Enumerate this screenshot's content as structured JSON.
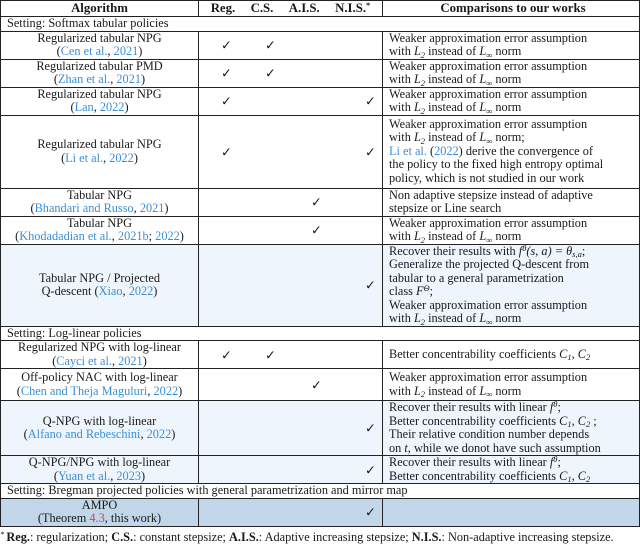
{
  "header": {
    "algorithm": "Algorithm",
    "reg": "Reg.",
    "cs": "C.S.",
    "ais": "A.I.S.",
    "nis": "N.I.S.",
    "nis_mark": "*",
    "comparisons": "Comparisons to our works"
  },
  "check_glyph": "✓",
  "colors": {
    "link": "#3b8fd6",
    "ref": "#e0403f",
    "highlight": "#eef5fc",
    "ours": "#c2d6ea"
  },
  "rows": [
    {
      "type": "setting",
      "text": "Setting: Softmax tabular policies"
    },
    {
      "type": "row",
      "h": 22,
      "alg": [
        [
          {
            "t": "Regularized tabular NPG"
          }
        ],
        [
          {
            "t": "("
          },
          {
            "t": "Cen et al.",
            "k": "link"
          },
          {
            "t": ", "
          },
          {
            "t": "2021",
            "k": "link"
          },
          {
            "t": ")"
          }
        ]
      ],
      "checks": {
        "reg": true,
        "cs": true,
        "ais": false,
        "nis": false
      },
      "cmp": [
        [
          {
            "t": "Weaker approximation error assumption"
          }
        ],
        [
          {
            "t": "with "
          },
          {
            "t": "L",
            "k": "math"
          },
          {
            "t": "2",
            "k": "sub"
          },
          {
            "t": " instead of "
          },
          {
            "t": "L",
            "k": "math"
          },
          {
            "t": "∞",
            "k": "sub"
          },
          {
            "t": " norm"
          }
        ]
      ]
    },
    {
      "type": "row",
      "h": 21,
      "alg": [
        [
          {
            "t": "Regularized tabular PMD"
          }
        ],
        [
          {
            "t": "("
          },
          {
            "t": "Zhan et al.",
            "k": "link"
          },
          {
            "t": ", "
          },
          {
            "t": "2021",
            "k": "link"
          },
          {
            "t": ")"
          }
        ]
      ],
      "checks": {
        "reg": true,
        "cs": true,
        "ais": false,
        "nis": false
      },
      "cmp": [
        [
          {
            "t": "Weaker approximation error assumption"
          }
        ],
        [
          {
            "t": "with "
          },
          {
            "t": "L",
            "k": "math"
          },
          {
            "t": "2",
            "k": "sub"
          },
          {
            "t": " instead of "
          },
          {
            "t": "L",
            "k": "math"
          },
          {
            "t": "∞",
            "k": "sub"
          },
          {
            "t": " norm"
          }
        ]
      ]
    },
    {
      "type": "row",
      "h": 22,
      "alg": [
        [
          {
            "t": "Regularized tabular NPG"
          }
        ],
        [
          {
            "t": "("
          },
          {
            "t": "Lan",
            "k": "link"
          },
          {
            "t": ", "
          },
          {
            "t": "2022",
            "k": "link"
          },
          {
            "t": ")"
          }
        ]
      ],
      "checks": {
        "reg": true,
        "cs": false,
        "ais": false,
        "nis": true
      },
      "cmp": [
        [
          {
            "t": "Weaker approximation error assumption"
          }
        ],
        [
          {
            "t": "with "
          },
          {
            "t": "L",
            "k": "math"
          },
          {
            "t": "2",
            "k": "sub"
          },
          {
            "t": " instead of "
          },
          {
            "t": "L",
            "k": "math"
          },
          {
            "t": "∞",
            "k": "sub"
          },
          {
            "t": " norm"
          }
        ]
      ]
    },
    {
      "type": "row",
      "h": 74,
      "alg": [
        [
          {
            "t": "Regularized tabular NPG"
          }
        ],
        [
          {
            "t": "("
          },
          {
            "t": "Li et al.",
            "k": "link"
          },
          {
            "t": ", "
          },
          {
            "t": "2022",
            "k": "link"
          },
          {
            "t": ")"
          }
        ]
      ],
      "checks": {
        "reg": true,
        "cs": false,
        "ais": false,
        "nis": true
      },
      "cmp": [
        [
          {
            "t": "Weaker approximation error assumption"
          }
        ],
        [
          {
            "t": "with "
          },
          {
            "t": "L",
            "k": "math"
          },
          {
            "t": "2",
            "k": "sub"
          },
          {
            "t": " instead of "
          },
          {
            "t": "L",
            "k": "math"
          },
          {
            "t": "∞",
            "k": "sub"
          },
          {
            "t": " norm;"
          }
        ],
        [
          {
            "t": "Li et al.",
            "k": "link"
          },
          {
            "t": " ("
          },
          {
            "t": "2022",
            "k": "link"
          },
          {
            "t": ") derive the convergence of"
          }
        ],
        [
          {
            "t": "the policy to the fixed high entropy optimal"
          }
        ],
        [
          {
            "t": "policy, which is not studied in our work"
          }
        ]
      ]
    },
    {
      "type": "row",
      "h": 25,
      "alg": [
        [
          {
            "t": "Tabular NPG"
          }
        ],
        [
          {
            "t": "("
          },
          {
            "t": "Bhandari and Russo",
            "k": "link"
          },
          {
            "t": ", "
          },
          {
            "t": "2021",
            "k": "link"
          },
          {
            "t": ")"
          }
        ]
      ],
      "checks": {
        "reg": false,
        "cs": false,
        "ais": true,
        "nis": false
      },
      "cmp": [
        [
          {
            "t": "Non adaptive stepsize instead of adaptive"
          }
        ],
        [
          {
            "t": "stepsize or Line search"
          }
        ]
      ]
    },
    {
      "type": "row",
      "h": 26,
      "alg": [
        [
          {
            "t": "Tabular NPG"
          }
        ],
        [
          {
            "t": "("
          },
          {
            "t": "Khodadadian et al.",
            "k": "link"
          },
          {
            "t": ", "
          },
          {
            "t": "2021b",
            "k": "link"
          },
          {
            "t": "; "
          },
          {
            "t": "2022",
            "k": "link"
          },
          {
            "t": ")"
          }
        ]
      ],
      "checks": {
        "reg": false,
        "cs": false,
        "ais": true,
        "nis": false
      },
      "cmp": [
        [
          {
            "t": "Weaker approximation error assumption"
          }
        ],
        [
          {
            "t": "with "
          },
          {
            "t": "L",
            "k": "math"
          },
          {
            "t": "2",
            "k": "sub"
          },
          {
            "t": " instead of "
          },
          {
            "t": "L",
            "k": "math"
          },
          {
            "t": "∞",
            "k": "sub"
          },
          {
            "t": " norm"
          }
        ]
      ]
    },
    {
      "type": "row",
      "h": 78,
      "hl": true,
      "alg": [
        [
          {
            "t": "Tabular NPG / Projected"
          }
        ],
        [
          {
            "t": "Q-descent ("
          },
          {
            "t": "Xiao",
            "k": "link"
          },
          {
            "t": ", "
          },
          {
            "t": "2022",
            "k": "link"
          },
          {
            "t": ")"
          }
        ]
      ],
      "checks": {
        "reg": false,
        "cs": false,
        "ais": false,
        "nis": true
      },
      "cmp": [
        [
          {
            "t": "Recover their results with "
          },
          {
            "t": "f",
            "k": "math"
          },
          {
            "t": "θ",
            "k": "sup"
          },
          {
            "t": "(s, a) = θ",
            "k": "math"
          },
          {
            "t": "s,a",
            "k": "sub"
          },
          {
            "t": ";"
          }
        ],
        [
          {
            "t": "Generalize the projected Q-descent from"
          }
        ],
        [
          {
            "t": "tabular to a general parametrization"
          }
        ],
        [
          {
            "t": "class "
          },
          {
            "t": "F",
            "k": "math"
          },
          {
            "t": "Θ",
            "k": "sup"
          },
          {
            "t": ";"
          }
        ],
        [
          {
            "t": "Weaker approximation error assumption"
          }
        ],
        [
          {
            "t": "with "
          },
          {
            "t": "L",
            "k": "math"
          },
          {
            "t": "2",
            "k": "sub"
          },
          {
            "t": " instead of "
          },
          {
            "t": "L",
            "k": "math"
          },
          {
            "t": "∞",
            "k": "sub"
          },
          {
            "t": " norm"
          }
        ]
      ]
    },
    {
      "type": "setting",
      "text": "Setting: Log-linear policies"
    },
    {
      "type": "row",
      "h": 21,
      "alg": [
        [
          {
            "t": "Regularized NPG with log-linear"
          }
        ],
        [
          {
            "t": "("
          },
          {
            "t": "Cayci et al.",
            "k": "link"
          },
          {
            "t": ", "
          },
          {
            "t": "2021",
            "k": "link"
          },
          {
            "t": ")"
          }
        ]
      ],
      "checks": {
        "reg": true,
        "cs": true,
        "ais": false,
        "nis": false
      },
      "cmp": [
        [
          {
            "t": "Better concentrability coefficients "
          },
          {
            "t": "C",
            "k": "math"
          },
          {
            "t": "1",
            "k": "sub"
          },
          {
            "t": ", "
          },
          {
            "t": "C",
            "k": "math"
          },
          {
            "t": "2",
            "k": "sub"
          }
        ]
      ]
    },
    {
      "type": "row",
      "h": 33,
      "alg": [
        [
          {
            "t": "Off-policy NAC with log-linear"
          }
        ],
        [
          {
            "t": "("
          },
          {
            "t": "Chen and Theja Maguluri",
            "k": "link"
          },
          {
            "t": ", "
          },
          {
            "t": "2022",
            "k": "link"
          },
          {
            "t": ")"
          }
        ]
      ],
      "checks": {
        "reg": false,
        "cs": false,
        "ais": true,
        "nis": false
      },
      "cmp": [
        [
          {
            "t": "Weaker approximation error assumption"
          }
        ],
        [
          {
            "t": "with "
          },
          {
            "t": "L",
            "k": "math"
          },
          {
            "t": "2",
            "k": "sub"
          },
          {
            "t": " instead of "
          },
          {
            "t": "L",
            "k": "math"
          },
          {
            "t": "∞",
            "k": "sub"
          },
          {
            "t": " norm"
          }
        ]
      ]
    },
    {
      "type": "row",
      "h": 53,
      "hl": true,
      "alg": [
        [
          {
            "t": "Q-NPG with log-linear"
          }
        ],
        [
          {
            "t": "("
          },
          {
            "t": "Alfano and Rebeschini",
            "k": "link"
          },
          {
            "t": ", "
          },
          {
            "t": "2022",
            "k": "link"
          },
          {
            "t": ")"
          }
        ]
      ],
      "checks": {
        "reg": false,
        "cs": false,
        "ais": false,
        "nis": true
      },
      "cmp": [
        [
          {
            "t": "Recover their results with linear "
          },
          {
            "t": "f",
            "k": "math"
          },
          {
            "t": "θ",
            "k": "sup"
          },
          {
            "t": ";"
          }
        ],
        [
          {
            "t": "Better concentrability coefficients "
          },
          {
            "t": "C",
            "k": "math"
          },
          {
            "t": "1",
            "k": "sub"
          },
          {
            "t": ", "
          },
          {
            "t": "C",
            "k": "math"
          },
          {
            "t": "2",
            "k": "sub"
          },
          {
            "t": " ;"
          }
        ],
        [
          {
            "t": "Their relative condition number depends"
          }
        ],
        [
          {
            "t": "on "
          },
          {
            "t": "t",
            "k": "math"
          },
          {
            "t": ", while we donot have such assumption"
          }
        ]
      ]
    },
    {
      "type": "row",
      "h": 26,
      "hl": true,
      "alg": [
        [
          {
            "t": "Q-NPG/NPG with log-linear"
          }
        ],
        [
          {
            "t": "("
          },
          {
            "t": "Yuan et al.",
            "k": "link"
          },
          {
            "t": ", "
          },
          {
            "t": "2023",
            "k": "link"
          },
          {
            "t": ")"
          }
        ]
      ],
      "checks": {
        "reg": false,
        "cs": false,
        "ais": false,
        "nis": true
      },
      "cmp": [
        [
          {
            "t": "Recover their results with linear "
          },
          {
            "t": "f",
            "k": "math"
          },
          {
            "t": "θ",
            "k": "sup"
          },
          {
            "t": ";"
          }
        ],
        [
          {
            "t": "Better concentrability coefficients "
          },
          {
            "t": "C",
            "k": "math"
          },
          {
            "t": "1",
            "k": "sub"
          },
          {
            "t": ", "
          },
          {
            "t": "C",
            "k": "math"
          },
          {
            "t": "2",
            "k": "sub"
          }
        ]
      ]
    },
    {
      "type": "setting",
      "text": "Setting: Bregman projected policies with general parametrization and mirror map"
    },
    {
      "type": "row",
      "h": 28,
      "ours": true,
      "alg": [
        [
          {
            "t": "AMPO"
          }
        ],
        [
          {
            "t": "(Theorem "
          },
          {
            "t": "4.3",
            "k": "ref"
          },
          {
            "t": ", this work)"
          }
        ]
      ],
      "checks": {
        "reg": false,
        "cs": false,
        "ais": false,
        "nis": true
      },
      "cmp": []
    }
  ],
  "footnote": [
    {
      "t": "* ",
      "k": "sup"
    },
    {
      "t": "Reg.",
      "k": "b"
    },
    {
      "t": ": regularization; "
    },
    {
      "t": "C.S.",
      "k": "b"
    },
    {
      "t": ": constant stepsize; "
    },
    {
      "t": "A.I.S.",
      "k": "b"
    },
    {
      "t": ": Adaptive increasing stepsize; "
    },
    {
      "t": "N.I.S.",
      "k": "b"
    },
    {
      "t": ": Non-adaptive increasing stepsize."
    }
  ]
}
